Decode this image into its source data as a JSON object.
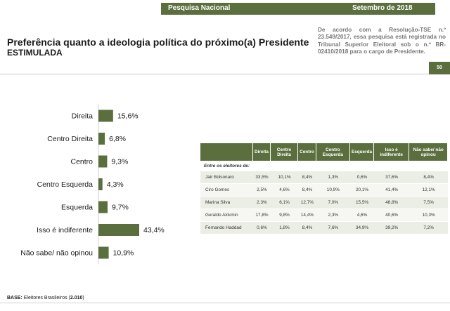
{
  "header": {
    "survey": "Pesquisa Nacional",
    "date": "Setembro de 2018",
    "page": "50"
  },
  "title": "Preferência quanto a ideologia política do próximo(a) Presidente",
  "subtitle": "ESTIMULADA",
  "note": "De acordo com a Resolução-TSE n.º 23.549/2017, essa pesquisa está registrada no Tribunal Superior Eleitoral sob o n.º BR-02410/2018 para o cargo de Presidente.",
  "colors": {
    "brand": "#5b6f3e",
    "bar": "#5b6f3e"
  },
  "chart_data": {
    "type": "bar",
    "orientation": "horizontal",
    "title": "Preferência quanto a ideologia política do próximo(a) Presidente",
    "categories": [
      "Direita",
      "Centro Direita",
      "Centro",
      "Centro Esquerda",
      "Esquerda",
      "Isso é indiferente",
      "Não sabe/ não opinou"
    ],
    "values": [
      15.6,
      6.8,
      9.3,
      4.3,
      9.7,
      43.4,
      10.9
    ],
    "value_labels": [
      "15,6%",
      "6,8%",
      "9,3%",
      "4,3%",
      "9,7%",
      "43,4%",
      "10,9%"
    ],
    "unit": "%",
    "xlim": [
      0,
      50
    ]
  },
  "table": {
    "columns": [
      "Direita",
      "Centro Direita",
      "Centro",
      "Centro Esquerda",
      "Esquerda",
      "Isso é indiferente",
      "Não sabe/ não opinou"
    ],
    "section_label": "Entre os eleitores de:",
    "rows": [
      {
        "name": "Jair Bolsonaro",
        "values": [
          "33,5%",
          "10,1%",
          "8,4%",
          "1,3%",
          "0,6%",
          "37,6%",
          "8,4%"
        ]
      },
      {
        "name": "Ciro Gomes",
        "values": [
          "2,5%",
          "4,6%",
          "8,4%",
          "10,9%",
          "20,1%",
          "41,4%",
          "12,1%"
        ]
      },
      {
        "name": "Marina Silva",
        "values": [
          "2,3%",
          "6,1%",
          "12,7%",
          "7,0%",
          "15,5%",
          "48,8%",
          "7,5%"
        ]
      },
      {
        "name": "Geraldo Alckmin",
        "values": [
          "17,8%",
          "9,8%",
          "14,4%",
          "2,3%",
          "4,6%",
          "40,6%",
          "10,3%"
        ]
      },
      {
        "name": "Fernando Haddad",
        "values": [
          "0,6%",
          "1,8%",
          "8,4%",
          "7,6%",
          "34,9%",
          "39,2%",
          "7,2%"
        ]
      }
    ]
  },
  "footer": {
    "base_label": "BASE:",
    "base_text": "Eleitores Brasileiros (",
    "base_count": "2.010",
    "base_close": ")"
  }
}
